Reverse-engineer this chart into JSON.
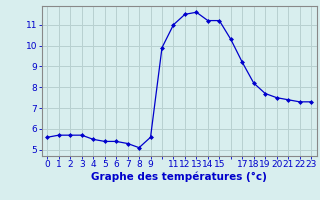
{
  "x": [
    0,
    1,
    2,
    3,
    4,
    5,
    6,
    7,
    8,
    9,
    10,
    11,
    12,
    13,
    14,
    15,
    16,
    17,
    18,
    19,
    20,
    21,
    22,
    23
  ],
  "y": [
    5.6,
    5.7,
    5.7,
    5.7,
    5.5,
    5.4,
    5.4,
    5.3,
    5.1,
    5.6,
    9.9,
    11.0,
    11.5,
    11.6,
    11.2,
    11.2,
    10.3,
    9.2,
    8.2,
    7.7,
    7.5,
    7.4,
    7.3,
    7.3
  ],
  "line_color": "#0000cc",
  "marker": "D",
  "marker_size": 2.0,
  "bg_color": "#d8eeee",
  "grid_color": "#b8d0d0",
  "axis_color": "#0000cc",
  "spine_color": "#888888",
  "xlabel": "Graphe des températures (°c)",
  "xlabel_fontsize": 7.5,
  "tick_fontsize": 6.5,
  "ylim": [
    4.7,
    11.9
  ],
  "xlim": [
    -0.5,
    23.5
  ],
  "yticks": [
    5,
    6,
    7,
    8,
    9,
    10,
    11
  ],
  "xtick_labels": [
    "0",
    "1",
    "2",
    "3",
    "4",
    "5",
    "6",
    "7",
    "8",
    "9",
    "",
    "11",
    "12",
    "13",
    "14",
    "15",
    "",
    "17",
    "18",
    "19",
    "20",
    "21",
    "22",
    "23"
  ]
}
